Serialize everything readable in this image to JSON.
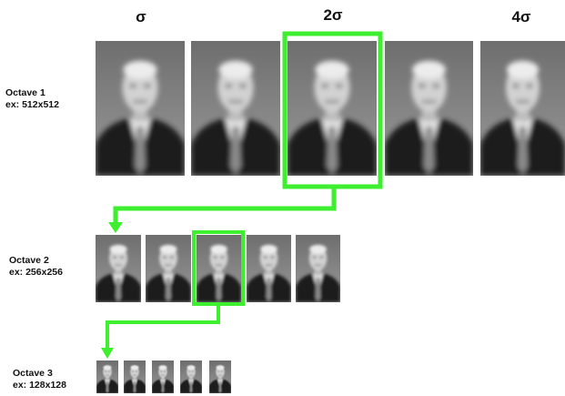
{
  "headers": [
    "σ",
    "2σ",
    "4σ"
  ],
  "octaves": [
    {
      "label": "Octave 1",
      "size": "ex: 512x512"
    },
    {
      "label": "Octave 2",
      "size": "ex: 256x256"
    },
    {
      "label": "Octave 3",
      "size": "ex: 128x128"
    }
  ]
}
